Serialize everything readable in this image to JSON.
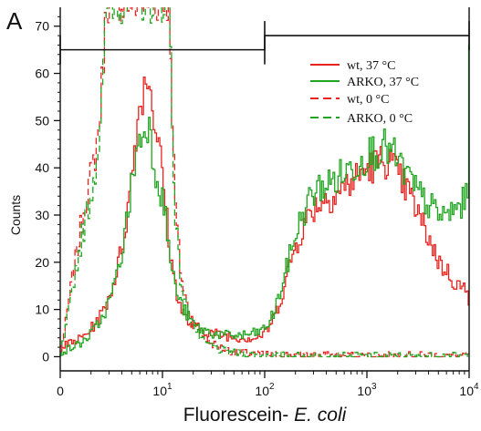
{
  "chart_data": {
    "type": "line",
    "panel_label": "A",
    "xlabel_prefix": "Fluorescein- ",
    "xlabel_italic": "E. coli",
    "ylabel": "Counts",
    "xscale": "log",
    "xlim": [
      1,
      10000
    ],
    "ylim": [
      -3,
      74
    ],
    "x_ticks": [
      {
        "value": 1,
        "base": "0",
        "exp": ""
      },
      {
        "value": 10,
        "base": "10",
        "exp": "1"
      },
      {
        "value": 100,
        "base": "10",
        "exp": "2"
      },
      {
        "value": 1000,
        "base": "10",
        "exp": "3"
      },
      {
        "value": 10000,
        "base": "10",
        "exp": "4"
      }
    ],
    "y_ticks": [
      "0",
      "10",
      "20",
      "30",
      "40",
      "50",
      "60",
      "70"
    ],
    "y_tick_values": [
      0,
      10,
      20,
      30,
      40,
      50,
      60,
      70
    ],
    "gate_markers": [
      {
        "x_start": 1,
        "x_end": 100,
        "y": 65
      },
      {
        "x_start": 100,
        "x_end": 10000,
        "y": 68
      }
    ],
    "legend_placement": "top-right",
    "series": [
      {
        "name": "wt, 37 °C",
        "color": "#e8231f",
        "dash": "solid",
        "points": [
          [
            1,
            2
          ],
          [
            1.3,
            3
          ],
          [
            1.6,
            4
          ],
          [
            2,
            6
          ],
          [
            2.5,
            9
          ],
          [
            3,
            13
          ],
          [
            3.5,
            18
          ],
          [
            4,
            24
          ],
          [
            4.5,
            31
          ],
          [
            5,
            40
          ],
          [
            5.5,
            49
          ],
          [
            6,
            54
          ],
          [
            6.5,
            57
          ],
          [
            7,
            60
          ],
          [
            7.5,
            57
          ],
          [
            8,
            52
          ],
          [
            9,
            45
          ],
          [
            10,
            37
          ],
          [
            11,
            28
          ],
          [
            12,
            20
          ],
          [
            13.5,
            14
          ],
          [
            15,
            10
          ],
          [
            18,
            7
          ],
          [
            22,
            6
          ],
          [
            30,
            5
          ],
          [
            40,
            4.5
          ],
          [
            60,
            4
          ],
          [
            80,
            4
          ],
          [
            100,
            5
          ],
          [
            120,
            8
          ],
          [
            150,
            14
          ],
          [
            180,
            21
          ],
          [
            220,
            26
          ],
          [
            280,
            31
          ],
          [
            350,
            33
          ],
          [
            450,
            34
          ],
          [
            600,
            36
          ],
          [
            800,
            38
          ],
          [
            1000,
            40
          ],
          [
            1300,
            41
          ],
          [
            1600,
            42
          ],
          [
            2000,
            38
          ],
          [
            2500,
            35
          ],
          [
            3000,
            31
          ],
          [
            4000,
            25
          ],
          [
            5000,
            20
          ],
          [
            6000,
            18
          ],
          [
            7000,
            16
          ],
          [
            8000,
            15
          ],
          [
            9000,
            14
          ],
          [
            9800,
            12
          ]
        ]
      },
      {
        "name": "ARKO, 37 °C",
        "color": "#1fa51f",
        "dash": "solid",
        "points": [
          [
            1,
            1
          ],
          [
            1.3,
            2
          ],
          [
            1.6,
            3
          ],
          [
            2,
            5
          ],
          [
            2.5,
            8
          ],
          [
            3,
            12
          ],
          [
            3.5,
            17
          ],
          [
            4,
            23
          ],
          [
            4.5,
            30
          ],
          [
            5,
            38
          ],
          [
            5.5,
            44
          ],
          [
            6,
            46
          ],
          [
            6.5,
            48
          ],
          [
            7,
            50
          ],
          [
            7.5,
            47
          ],
          [
            8,
            42
          ],
          [
            9,
            37
          ],
          [
            10,
            33
          ],
          [
            11,
            26
          ],
          [
            12,
            19
          ],
          [
            13.5,
            14
          ],
          [
            15,
            11
          ],
          [
            18,
            8
          ],
          [
            22,
            6
          ],
          [
            30,
            5
          ],
          [
            40,
            4.5
          ],
          [
            60,
            4.5
          ],
          [
            80,
            5
          ],
          [
            100,
            6
          ],
          [
            120,
            9
          ],
          [
            150,
            16
          ],
          [
            180,
            23
          ],
          [
            220,
            29
          ],
          [
            280,
            34
          ],
          [
            350,
            36
          ],
          [
            450,
            37
          ],
          [
            600,
            39
          ],
          [
            800,
            41
          ],
          [
            1000,
            43
          ],
          [
            1300,
            44
          ],
          [
            1600,
            44
          ],
          [
            2000,
            41
          ],
          [
            2500,
            38
          ],
          [
            3000,
            35
          ],
          [
            4000,
            32
          ],
          [
            5000,
            30
          ],
          [
            6000,
            30
          ],
          [
            7000,
            31
          ],
          [
            8000,
            32
          ],
          [
            9000,
            33
          ],
          [
            9600,
            34
          ],
          [
            9900,
            70
          ]
        ]
      },
      {
        "name": "wt,  0 °C",
        "color": "#e8231f",
        "dash": "dashed",
        "points": [
          [
            1,
            2
          ],
          [
            1.1,
            6
          ],
          [
            1.2,
            12
          ],
          [
            1.3,
            17
          ],
          [
            1.5,
            25
          ],
          [
            1.7,
            32
          ],
          [
            1.9,
            37
          ],
          [
            2.1,
            41
          ],
          [
            2.3,
            47
          ],
          [
            2.5,
            57
          ],
          [
            2.7,
            70
          ],
          [
            2.8,
            75
          ],
          [
            11.5,
            75
          ],
          [
            12,
            60
          ],
          [
            12.5,
            45
          ],
          [
            13,
            34
          ],
          [
            14,
            24
          ],
          [
            15,
            17
          ],
          [
            17,
            11
          ],
          [
            20,
            7
          ],
          [
            25,
            4
          ],
          [
            35,
            2
          ],
          [
            50,
            1
          ],
          [
            80,
            0.5
          ],
          [
            100,
            0.5
          ],
          [
            300,
            0.3
          ],
          [
            1000,
            0.3
          ],
          [
            3000,
            0.3
          ],
          [
            10000,
            0.3
          ]
        ]
      },
      {
        "name": "ARKO, 0 °C",
        "color": "#1fa51f",
        "dash": "dashed",
        "points": [
          [
            1,
            1
          ],
          [
            1.1,
            5
          ],
          [
            1.2,
            10
          ],
          [
            1.3,
            15
          ],
          [
            1.5,
            22
          ],
          [
            1.7,
            28
          ],
          [
            1.9,
            33
          ],
          [
            2.1,
            38
          ],
          [
            2.3,
            44
          ],
          [
            2.5,
            54
          ],
          [
            2.7,
            67
          ],
          [
            2.8,
            75
          ],
          [
            11.5,
            75
          ],
          [
            12,
            58
          ],
          [
            12.5,
            43
          ],
          [
            13,
            32
          ],
          [
            14,
            22
          ],
          [
            15,
            15
          ],
          [
            17,
            10
          ],
          [
            20,
            6
          ],
          [
            25,
            3
          ],
          [
            35,
            1.5
          ],
          [
            50,
            0.8
          ],
          [
            80,
            0.4
          ],
          [
            100,
            0.3
          ],
          [
            300,
            0.2
          ],
          [
            1000,
            0.2
          ],
          [
            3000,
            0.2
          ],
          [
            10000,
            0.2
          ]
        ]
      }
    ]
  }
}
